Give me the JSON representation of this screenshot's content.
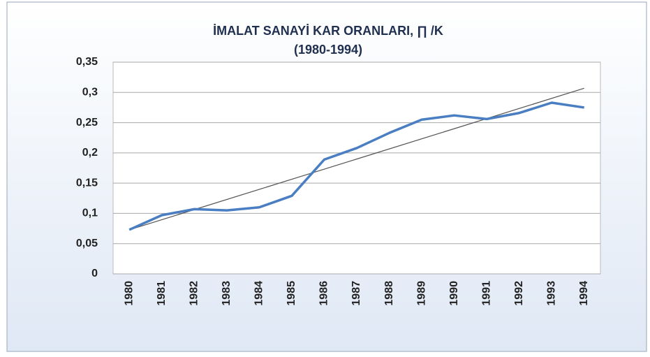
{
  "chart_data": {
    "type": "line",
    "title": "İMALAT SANAYİ KAR ORANLARI, ∏ /K",
    "subtitle": "(1980-1994)",
    "categories": [
      "1980",
      "1981",
      "1982",
      "1983",
      "1984",
      "1985",
      "1986",
      "1987",
      "1988",
      "1989",
      "1990",
      "1991",
      "1992",
      "1993",
      "1994"
    ],
    "series": [
      {
        "color": "#4a7ec2",
        "values": [
          0.073,
          0.097,
          0.107,
          0.105,
          0.11,
          0.129,
          0.189,
          0.208,
          0.233,
          0.255,
          0.262,
          0.256,
          0.266,
          0.283,
          0.275
        ]
      }
    ],
    "trendline": "linear",
    "trendline_color": "#555555",
    "ylim": [
      0,
      0.35
    ],
    "yticks": [
      0,
      {
        "value": 0.05,
        "label": "0,05"
      },
      {
        "value": 0.1,
        "label": "0,1"
      },
      {
        "value": 0.15,
        "label": "0,15"
      },
      {
        "value": 0.2,
        "label": "0,2"
      },
      {
        "value": 0.25,
        "label": "0,25"
      },
      {
        "value": 0.3,
        "label": "0,3"
      },
      {
        "value": 0.35,
        "label": "0,35"
      }
    ],
    "grid": true
  }
}
